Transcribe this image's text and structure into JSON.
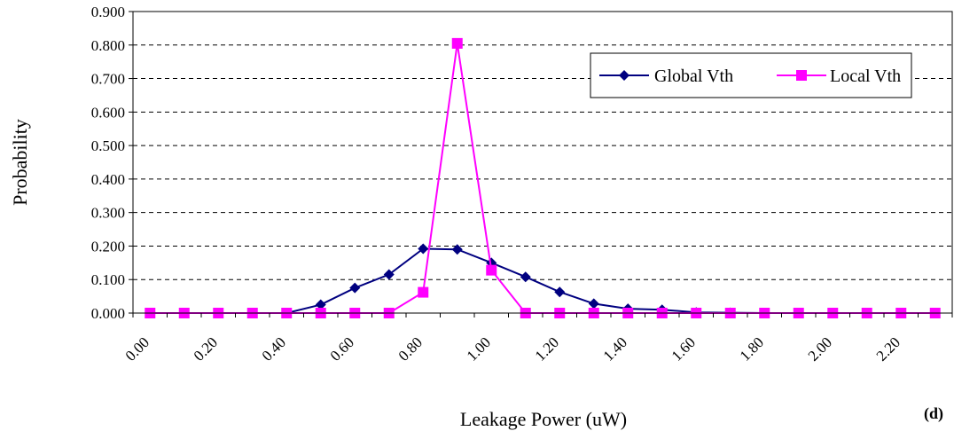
{
  "chart_data": {
    "type": "line",
    "xlabel": "Leakage Power (uW)",
    "ylabel": "Probability",
    "panel_label": "(d)",
    "ylim": [
      0,
      0.9
    ],
    "y_ticks": [
      "0.000",
      "0.100",
      "0.200",
      "0.300",
      "0.400",
      "0.500",
      "0.600",
      "0.700",
      "0.800",
      "0.900"
    ],
    "x_tick_labels": [
      "0.00",
      "0.20",
      "0.40",
      "0.60",
      "0.80",
      "1.00",
      "1.20",
      "1.40",
      "1.60",
      "1.80",
      "2.00",
      "2.20"
    ],
    "x": [
      0.05,
      0.15,
      0.25,
      0.35,
      0.45,
      0.55,
      0.65,
      0.75,
      0.85,
      0.95,
      1.05,
      1.15,
      1.25,
      1.35,
      1.45,
      1.55,
      1.65,
      1.75,
      1.85,
      1.95,
      2.05,
      2.15,
      2.25,
      2.35
    ],
    "xlim": [
      0,
      2.4
    ],
    "grid": "horizontal-dashed",
    "legend_position": "top-right",
    "series": [
      {
        "name": "Global Vth",
        "color": "#000080",
        "marker": "diamond",
        "values": [
          0.0,
          0.0,
          0.0,
          0.0,
          0.0,
          0.025,
          0.075,
          0.115,
          0.192,
          0.19,
          0.15,
          0.108,
          0.063,
          0.028,
          0.013,
          0.01,
          0.002,
          0.001,
          0.0,
          0.0,
          0.0,
          0.0,
          0.0,
          0.0
        ]
      },
      {
        "name": "Local Vth",
        "color": "#ff00ff",
        "marker": "square",
        "values": [
          0.0,
          0.0,
          0.0,
          0.0,
          0.0,
          0.0,
          0.0,
          0.0,
          0.062,
          0.805,
          0.128,
          0.0,
          0.0,
          0.0,
          0.0,
          0.0,
          0.0,
          0.0,
          0.0,
          0.0,
          0.0,
          0.0,
          0.0,
          0.0
        ]
      }
    ]
  }
}
